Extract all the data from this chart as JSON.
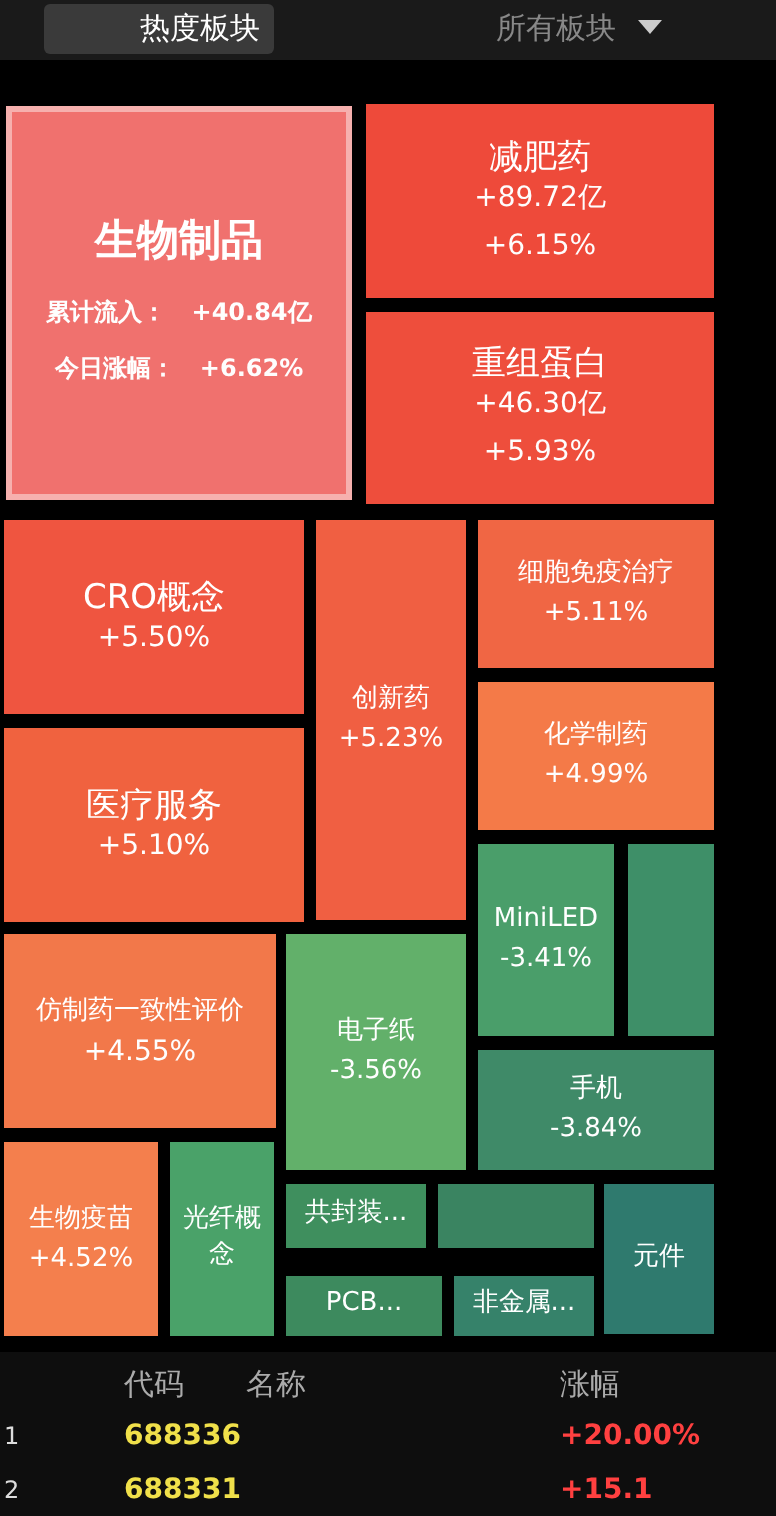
{
  "chart_data": {
    "type": "other",
    "categories": [
      "生物制品",
      "减肥药",
      "重组蛋白",
      "CRO概念",
      "医疗服务",
      "创新药",
      "细胞免疫治疗",
      "化学制药",
      "MiniLED",
      null,
      "仿制药一致性评价",
      "电子纸",
      "手机",
      "生物疫苗",
      "光纤概念",
      "共封装...",
      null,
      "元件",
      "PCB...",
      "非金属..."
    ],
    "series": [
      {
        "name": "今日涨幅：",
        "colors": [
          "#f0716e",
          "#ee4a3a",
          "#ee4e3c",
          "#ef5540",
          "#f0623f",
          "#f05f42",
          "#f06644",
          "#f47a48",
          "#4a9e6a",
          "#3e8f68",
          "#f2784a",
          "#62b06a",
          "#3f8a68",
          "#f47f4d",
          "#4aa269",
          "#3f8f5e",
          "#3a8461",
          "#2f7a6e",
          "#3d8a5e",
          "#36826a"
        ],
        "values": [
          6.62,
          6.15,
          5.93,
          5.5,
          5.1,
          5.23,
          5.11,
          4.99,
          -3.41,
          null,
          4.55,
          -3.56,
          -3.84,
          4.52,
          null,
          null,
          null,
          null,
          null,
          null
        ],
        "value_labels": [
          "+6.62%",
          "+6.15%",
          "+5.93%",
          "+5.50%",
          "+5.10%",
          "+5.23%",
          "+5.11%",
          "+4.99%",
          "-3.41%",
          null,
          "+4.55%",
          "-3.56%",
          "-3.84%",
          "+4.52%",
          null,
          null,
          null,
          null,
          null,
          null
        ]
      },
      {
        "name": "累计流入：",
        "values": [
          40.84,
          89.72,
          46.3,
          null,
          null,
          null,
          null,
          null,
          null,
          null,
          null,
          null,
          null,
          null,
          null,
          null,
          null,
          null,
          null,
          null
        ],
        "value_labels": [
          "+40.84亿",
          "+89.72亿",
          "+46.30亿",
          null,
          null,
          null,
          null,
          null,
          null,
          null,
          null,
          null,
          null,
          null,
          null,
          null,
          null,
          null,
          null,
          null
        ]
      }
    ],
    "annotations": [
      "热度板块",
      "所有板块",
      "代码",
      "名称",
      "涨幅",
      "1",
      "688336",
      "+20.00%",
      "2",
      "688331",
      "+15.1"
    ]
  }
}
